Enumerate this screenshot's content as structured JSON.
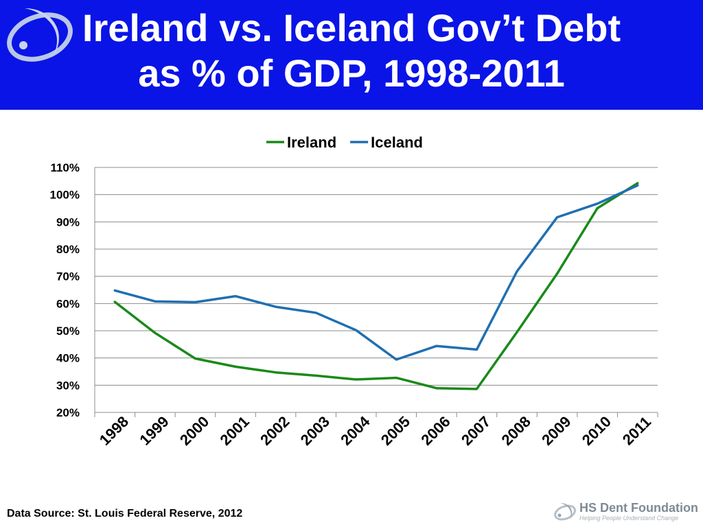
{
  "slide": {
    "title_line1": "Ireland vs. Iceland Gov’t Debt",
    "title_line2": "as % of GDP, 1998-2011",
    "source": "Data Source: St. Louis Federal Reserve, 2012",
    "brand_name": "HS Dent Foundation",
    "brand_tagline": "Helping People Understand Change",
    "header_color": "#0a14e6"
  },
  "chart_data": {
    "type": "line",
    "title": "",
    "xlabel": "",
    "ylabel": "",
    "categories": [
      "1998",
      "1999",
      "2000",
      "2001",
      "2002",
      "2003",
      "2004",
      "2005",
      "2006",
      "2007",
      "2008",
      "2009",
      "2010",
      "2011"
    ],
    "series": [
      {
        "name": "Ireland",
        "color": "#1a8a1a",
        "values": [
          60.6,
          49.2,
          39.8,
          36.8,
          34.7,
          33.5,
          32.1,
          32.7,
          28.9,
          28.6,
          49.5,
          71.0,
          95.0,
          104.2
        ]
      },
      {
        "name": "Iceland",
        "color": "#1f6fb2",
        "values": [
          64.8,
          60.8,
          60.5,
          62.7,
          58.8,
          56.6,
          50.2,
          39.4,
          44.4,
          43.1,
          71.8,
          91.7,
          96.7,
          103.4
        ]
      }
    ],
    "ylim": [
      20,
      110
    ],
    "yticks": [
      20,
      30,
      40,
      50,
      60,
      70,
      80,
      90,
      100,
      110
    ],
    "ytick_format": "percent",
    "grid": true,
    "legend_position": "top"
  }
}
